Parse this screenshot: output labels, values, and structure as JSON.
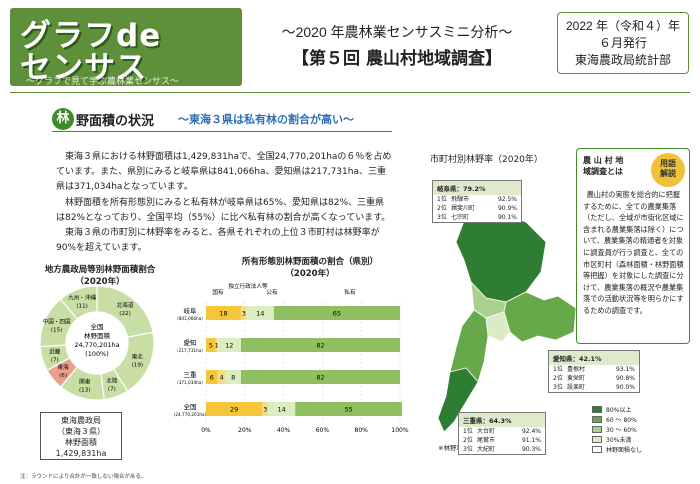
{
  "header": {
    "logo_line1": "グラフde",
    "logo_line2": "センサス",
    "logo_tagline": "～グラフで見て学ぶ農林業センサス～",
    "subtitle": "～2020 年農林業センサスミニ分析～",
    "title": "【第５回 農山村地域調査】",
    "pub_line1": "2022 年（令和４）年",
    "pub_line2": "６月発行",
    "pub_line3": "東海農政局統計部"
  },
  "section": {
    "badge": "林",
    "title": "野面積の状況",
    "subtitle": "～東海３県は私有林の割合が高い～"
  },
  "body": {
    "p1": "東海３県における林野面積は1,429,831haで、全国24,770,201haの６％を占めています。また、県別にみると岐阜県は841,066ha、愛知県は217,731ha、三重県は371,034haとなっています。",
    "p2": "林野面積を所有形態別にみると私有林が岐阜県は65%、愛知県は82%、三重県は82%となっており、全国平均（55%）に比べ私有林の割合が高くなっています。",
    "p3": "東海３県の市町別に林野率をみると、各県それぞれの上位３市町村は林野率が90%を超えています。"
  },
  "donut": {
    "title_line1": "地方農政局等別林野面積割合",
    "title_line2": "（2020年）",
    "center_line1": "全国",
    "center_line2": "林野面積",
    "center_line3": "24,770,201ha",
    "center_line4": "(100%)",
    "segments": [
      {
        "label": "北海道",
        "value": "(22)",
        "color": "#c7dea4"
      },
      {
        "label": "東北",
        "value": "(19)",
        "color": "#c7dea4"
      },
      {
        "label": "北陸",
        "value": "(7)",
        "color": "#c7dea4"
      },
      {
        "label": "関東",
        "value": "(13)",
        "color": "#c7dea4"
      },
      {
        "label": "東海",
        "value": "(6)",
        "color": "#e8a08a"
      },
      {
        "label": "近畿",
        "value": "(7)",
        "color": "#c7dea4"
      },
      {
        "label": "中国・四国",
        "value": "(15)",
        "color": "#c7dea4"
      },
      {
        "label": "九州・沖縄",
        "value": "(11)",
        "color": "#c7dea4"
      }
    ],
    "note_line1": "東海農政局",
    "note_line2": "（東海３県）",
    "note_line3": "林野面積",
    "note_line4": "1,429,831ha",
    "footnote": "注：ラウンドにより合計が一致しない場合がある。"
  },
  "chart_data": {
    "type": "bar",
    "orientation": "horizontal-stacked",
    "title": "所有形態別林野面積の割合（県別）",
    "subtitle": "（2020年）",
    "categories": [
      "岐阜",
      "愛知",
      "三重",
      "全国"
    ],
    "category_sub": [
      "（841,066ha）",
      "（217,731ha）",
      "（371,034ha）",
      "（24,770,201ha）"
    ],
    "series": [
      {
        "name": "国有",
        "values": [
          18,
          5,
          6,
          29
        ],
        "color": "#f5c53a"
      },
      {
        "name": "独立行政法人等",
        "values": [
          3,
          1,
          4,
          3
        ],
        "color": "#f7dc8a"
      },
      {
        "name": "公有",
        "values": [
          14,
          12,
          8,
          14
        ],
        "color": "#dcecc3"
      },
      {
        "name": "私有",
        "values": [
          65,
          82,
          82,
          55
        ],
        "color": "#8fbf5e"
      }
    ],
    "xlim": [
      0,
      100
    ],
    "xticks": [
      "0%",
      "20%",
      "40%",
      "60%",
      "80%",
      "100%"
    ],
    "grid": true
  },
  "map": {
    "title": "市町村別林野率（2020年）",
    "note": "※林野率：林野面積／総土地面積",
    "gifu": {
      "head": "岐阜県：79.2%",
      "rows": [
        [
          "1位",
          "飛騨市",
          "92.5%"
        ],
        [
          "2位",
          "揖斐川町",
          "90.9%"
        ],
        [
          "3位",
          "七宗町",
          "90.1%"
        ]
      ]
    },
    "aichi": {
      "head": "愛知県：42.1%",
      "rows": [
        [
          "1位",
          "豊根村",
          "93.1%"
        ],
        [
          "2位",
          "東栄町",
          "90.8%"
        ],
        [
          "3位",
          "設楽町",
          "90.0%"
        ]
      ]
    },
    "mie": {
      "head": "三重県：64.3%",
      "rows": [
        [
          "1位",
          "大台町",
          "92.4%"
        ],
        [
          "2位",
          "尾鷲市",
          "91.1%"
        ],
        [
          "3位",
          "大紀町",
          "90.3%"
        ]
      ]
    },
    "legend": [
      {
        "label": "80%以上",
        "color": "#2e7d32"
      },
      {
        "label": "60 ～ 80%",
        "color": "#66a84a"
      },
      {
        "label": "30 ～ 60%",
        "color": "#a9d18e"
      },
      {
        "label": "30%未満",
        "color": "#d9ecc6"
      },
      {
        "label": "林野面積なし",
        "color": "#ffffff"
      }
    ]
  },
  "glossary": {
    "head_line1": "農 山 村 地",
    "head_line2": "域調査とは",
    "badge_line1": "用語",
    "badge_line2": "解説",
    "text": "農山村の実態を総合的に把握するために、全ての農業集落（ただし、全域が市街化区域に含まれる農業集落は除く）について、農業集落の精通者を対象に調査員が行う調査と、全ての市区町村（森林面積・林野面積等把握）を対象にした調査に分けて、農業集落の概況や農業集落での活動状況等を明らかにするための調査です。"
  }
}
